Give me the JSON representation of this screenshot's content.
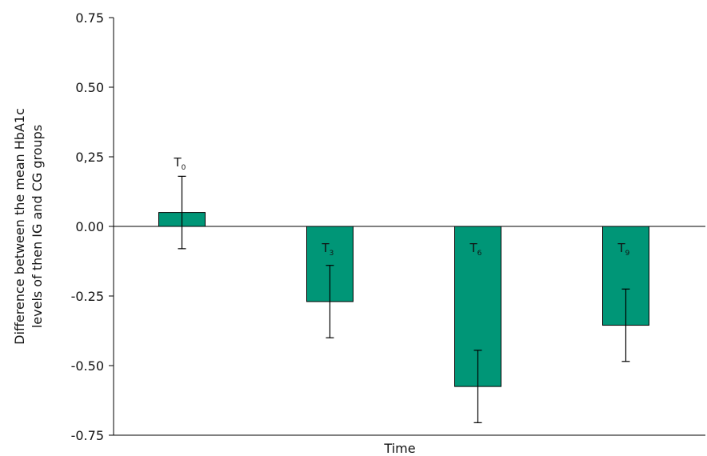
{
  "chart_data": {
    "type": "bar",
    "title": "",
    "xlabel": "Time",
    "ylabel_lines": [
      "Difference between the mean HbA1c",
      "levels of then IG and CG groups"
    ],
    "ylim": [
      -0.75,
      0.75
    ],
    "yticks": [
      {
        "value": 0.75,
        "label": "0.75"
      },
      {
        "value": 0.5,
        "label": "0.50"
      },
      {
        "value": 0.25,
        "label": "0,25"
      },
      {
        "value": 0.0,
        "label": "0.00"
      },
      {
        "value": -0.25,
        "label": "-0.25"
      },
      {
        "value": -0.5,
        "label": "-0.50"
      },
      {
        "value": -0.75,
        "label": "-0.75"
      }
    ],
    "categories": [
      {
        "base": "T",
        "sub": "0"
      },
      {
        "base": "T",
        "sub": "3"
      },
      {
        "base": "T",
        "sub": "6"
      },
      {
        "base": "T",
        "sub": "9"
      }
    ],
    "values": [
      0.05,
      -0.27,
      -0.575,
      -0.355
    ],
    "errors": [
      {
        "low": -0.08,
        "high": 0.18
      },
      {
        "low": -0.4,
        "high": -0.14
      },
      {
        "low": -0.705,
        "high": -0.445
      },
      {
        "low": -0.485,
        "high": -0.225
      }
    ],
    "bar_color": "#009677",
    "grid": false,
    "legend": "none"
  }
}
